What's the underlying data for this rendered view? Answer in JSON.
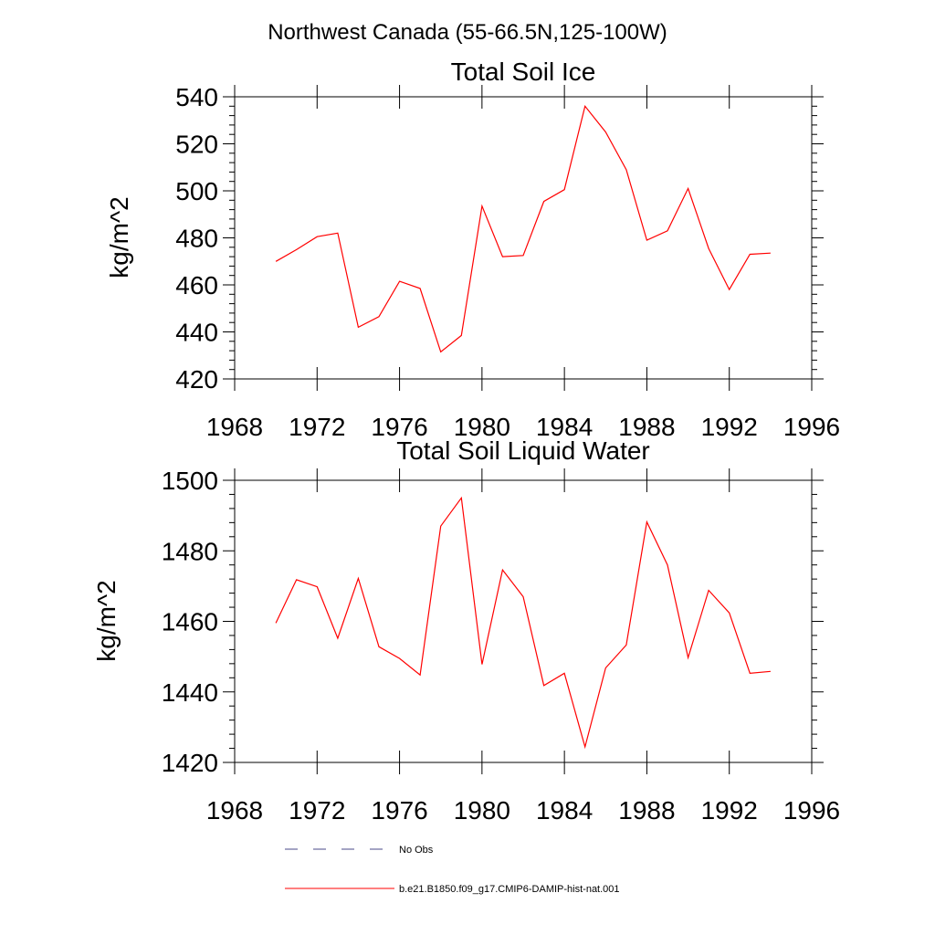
{
  "figure_title": "Northwest Canada (55-66.5N,125-100W)",
  "colors": {
    "series": "#ff0000",
    "obs": "#4a4a8a",
    "axis": "#000000"
  },
  "chart_data": [
    {
      "type": "line",
      "title": "Total Soil Ice",
      "xlabel": "",
      "ylabel": "kg/m^2",
      "xlim": [
        1968,
        1996
      ],
      "ylim": [
        420,
        540
      ],
      "xticks": [
        1968,
        1972,
        1976,
        1980,
        1984,
        1988,
        1992,
        1996
      ],
      "yticks": [
        420,
        440,
        460,
        480,
        500,
        520,
        540
      ],
      "grid": false,
      "series": [
        {
          "name": "b.e21.B1850.f09_g17.CMIP6-DAMIP-hist-nat.001",
          "x": [
            1970,
            1971,
            1972,
            1973,
            1974,
            1975,
            1976,
            1977,
            1978,
            1979,
            1980,
            1981,
            1982,
            1983,
            1984,
            1985,
            1986,
            1987,
            1988,
            1989,
            1990,
            1991,
            1992,
            1993,
            1994
          ],
          "values": [
            470,
            475,
            480.5,
            482,
            442,
            446.5,
            461.5,
            458.5,
            431.5,
            438.5,
            493.5,
            472,
            472.5,
            495.5,
            500.5,
            536,
            525,
            509,
            479,
            483,
            501,
            475.5,
            458,
            473,
            473.5
          ]
        }
      ]
    },
    {
      "type": "line",
      "title": "Total Soil Liquid Water",
      "xlabel": "",
      "ylabel": "kg/m^2",
      "xlim": [
        1968,
        1996
      ],
      "ylim": [
        1420,
        1500
      ],
      "xticks": [
        1968,
        1972,
        1976,
        1980,
        1984,
        1988,
        1992,
        1996
      ],
      "yticks": [
        1420,
        1440,
        1460,
        1480,
        1500
      ],
      "grid": false,
      "series": [
        {
          "name": "b.e21.B1850.f09_g17.CMIP6-DAMIP-hist-nat.001",
          "x": [
            1970,
            1971,
            1972,
            1973,
            1974,
            1975,
            1976,
            1977,
            1978,
            1979,
            1980,
            1981,
            1982,
            1983,
            1984,
            1985,
            1986,
            1987,
            1988,
            1989,
            1990,
            1991,
            1992,
            1993,
            1994
          ],
          "values": [
            1459.5,
            1471.8,
            1469.8,
            1455.2,
            1472.2,
            1452.8,
            1449.5,
            1444.8,
            1487,
            1495,
            1447.8,
            1474.6,
            1467,
            1441.8,
            1445.3,
            1424.4,
            1446.8,
            1453.3,
            1488.2,
            1476,
            1449.7,
            1468.8,
            1462.4,
            1445.3,
            1445.8
          ]
        }
      ]
    }
  ],
  "legend": {
    "placement": "bottom",
    "items": [
      {
        "label": "No Obs",
        "style": "dashed"
      },
      {
        "label": "b.e21.B1850.f09_g17.CMIP6-DAMIP-hist-nat.001",
        "style": "solid"
      }
    ]
  }
}
